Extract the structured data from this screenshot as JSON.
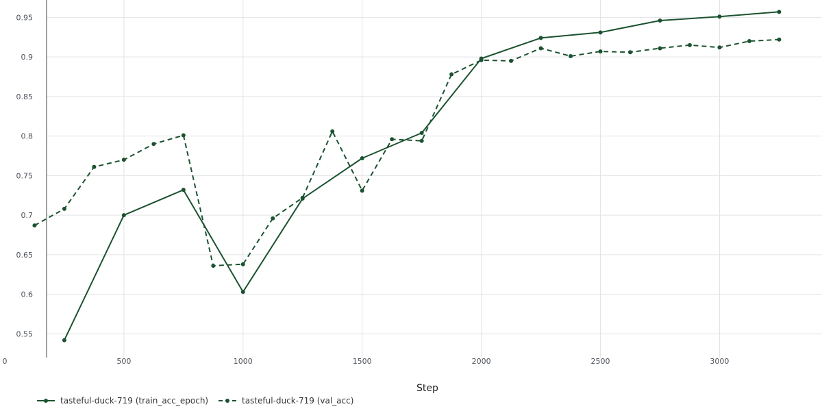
{
  "chart_data": {
    "type": "line",
    "xlabel": "Step",
    "ylabel": "",
    "xlim": [
      -20,
      3430
    ],
    "ylim": [
      0.52,
      0.972
    ],
    "xticks": [
      0,
      500,
      1000,
      1500,
      2000,
      2500,
      3000
    ],
    "yticks": [
      0.55,
      0.6,
      0.65,
      0.7,
      0.75,
      0.8,
      0.85,
      0.9,
      0.95
    ],
    "grid": true,
    "legend_position": "bottom-left",
    "line_color": "#1b5230",
    "series": [
      {
        "name": "tasteful-duck-719 (train_acc_epoch)",
        "dash": "solid",
        "x": [
          250,
          500,
          750,
          1000,
          1250,
          1500,
          1750,
          2000,
          2250,
          2500,
          2750,
          3000,
          3250
        ],
        "y": [
          0.542,
          0.7,
          0.732,
          0.603,
          0.721,
          0.772,
          0.804,
          0.898,
          0.924,
          0.931,
          0.946,
          0.951,
          0.957
        ]
      },
      {
        "name": "tasteful-duck-719 (val_acc)",
        "dash": "dashed",
        "x": [
          125,
          250,
          375,
          500,
          625,
          750,
          875,
          1000,
          1125,
          1250,
          1375,
          1500,
          1625,
          1750,
          1875,
          2000,
          2125,
          2250,
          2375,
          2500,
          2625,
          2750,
          2875,
          3000,
          3125,
          3250
        ],
        "y": [
          0.687,
          0.708,
          0.761,
          0.77,
          0.79,
          0.801,
          0.636,
          0.638,
          0.696,
          0.722,
          0.806,
          0.731,
          0.796,
          0.794,
          0.878,
          0.896,
          0.895,
          0.911,
          0.901,
          0.907,
          0.906,
          0.911,
          0.915,
          0.912,
          0.92,
          0.922
        ]
      }
    ]
  }
}
